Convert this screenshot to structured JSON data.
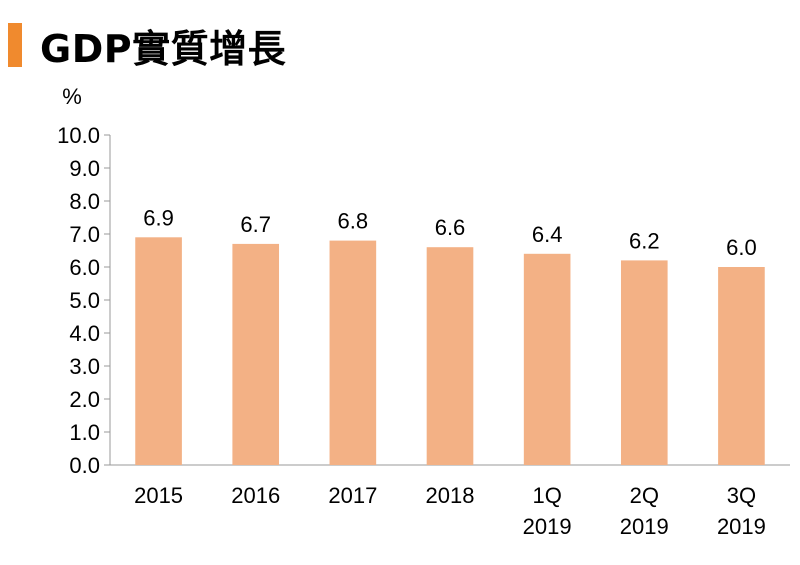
{
  "title": "GDP實質增長",
  "colors": {
    "accent": "#f08a2e",
    "bar": "#f3b185",
    "axis": "#999999"
  },
  "chart_data": {
    "type": "bar",
    "title": "GDP實質增長",
    "unit_label": "%",
    "categories": [
      [
        "2015"
      ],
      [
        "2016"
      ],
      [
        "2017"
      ],
      [
        "2018"
      ],
      [
        "1Q",
        "2019"
      ],
      [
        "2Q",
        "2019"
      ],
      [
        "3Q",
        "2019"
      ]
    ],
    "values": [
      6.9,
      6.7,
      6.8,
      6.6,
      6.4,
      6.2,
      6.0
    ],
    "value_labels": [
      "6.9",
      "6.7",
      "6.8",
      "6.6",
      "6.4",
      "6.2",
      "6.0"
    ],
    "ylim": [
      0,
      10
    ],
    "yticks": [
      "0.0",
      "1.0",
      "2.0",
      "3.0",
      "4.0",
      "5.0",
      "6.0",
      "7.0",
      "8.0",
      "9.0",
      "10.0"
    ],
    "grid": false,
    "legend": "none"
  }
}
